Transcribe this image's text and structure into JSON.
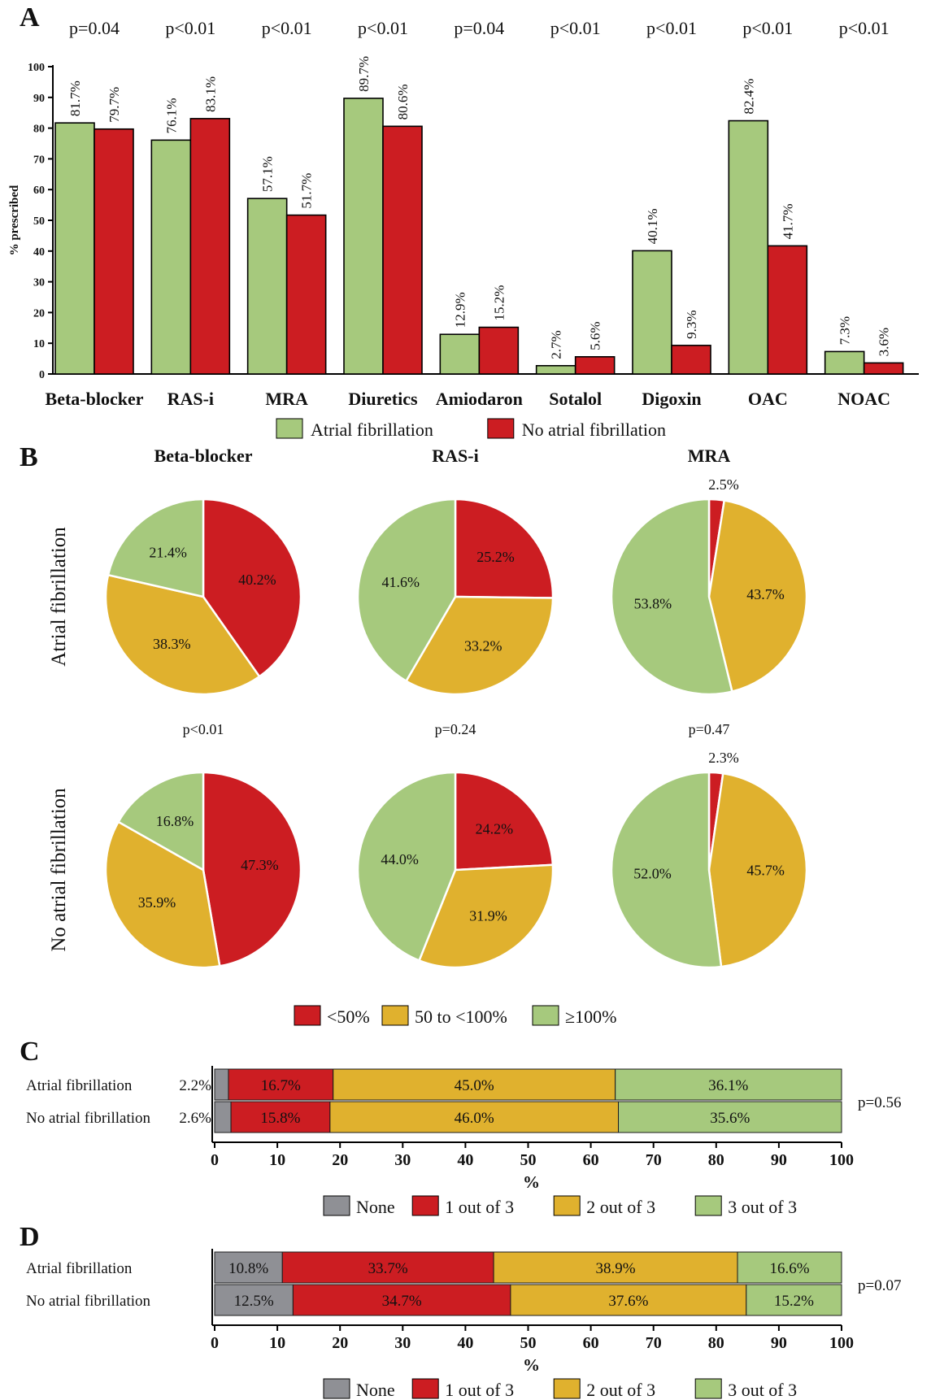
{
  "colors": {
    "af": "#a6c97d",
    "noaf": "#cc1d22",
    "none": "#8f9095",
    "mid": "#e0b12e",
    "axis": "#000000"
  },
  "panels": {
    "a": "A",
    "b": "B",
    "c": "C",
    "d": "D"
  },
  "chart_data": [
    {
      "type": "bar",
      "panel": "A",
      "categories": [
        "Beta-blocker",
        "RAS-i",
        "MRA",
        "Diuretics",
        "Amiodaron",
        "Sotalol",
        "Digoxin",
        "OAC",
        "NOAC"
      ],
      "series": [
        {
          "name": "Atrial fibrillation",
          "values": [
            81.7,
            76.1,
            57.1,
            89.7,
            12.9,
            2.7,
            40.1,
            82.4,
            7.3
          ],
          "labels": [
            "81.7%",
            "76.1%",
            "57.1%",
            "89.7%",
            "12.9%",
            "2.7%",
            "40.1%",
            "82.4%",
            "7.3%"
          ]
        },
        {
          "name": "No atrial fibrillation",
          "values": [
            79.7,
            83.1,
            51.7,
            80.6,
            15.2,
            5.6,
            9.3,
            41.7,
            3.6
          ],
          "labels": [
            "79.7%",
            "83.1%",
            "51.7%",
            "80.6%",
            "15.2%",
            "5.6%",
            "9.3%",
            "41.7%",
            "3.6%"
          ]
        }
      ],
      "p_values": [
        "p=0.04",
        "p<0.01",
        "p<0.01",
        "p<0.01",
        "p=0.04",
        "p<0.01",
        "p<0.01",
        "p<0.01",
        "p<0.01"
      ],
      "ylabel": "% prescribed",
      "ylim": [
        0,
        100
      ],
      "yticks": [
        "0",
        "10",
        "20",
        "30",
        "40",
        "50",
        "60",
        "70",
        "80",
        "90",
        "100"
      ],
      "legend_position": "bottom-center"
    },
    {
      "type": "pie",
      "panel": "B",
      "columns": [
        "Beta-blocker",
        "RAS-i",
        "MRA"
      ],
      "rows": [
        "Atrial fibrillation",
        "No atrial fibrillation"
      ],
      "categories": [
        "<50%",
        "50 to <100%",
        "≥100%"
      ],
      "pies": [
        {
          "row": 0,
          "col": 0,
          "values": [
            40.2,
            38.3,
            21.4
          ],
          "labels": [
            "40.2%",
            "38.3%",
            "21.4%"
          ]
        },
        {
          "row": 0,
          "col": 1,
          "values": [
            25.2,
            33.2,
            41.6
          ],
          "labels": [
            "25.2%",
            "33.2%",
            "41.6%"
          ]
        },
        {
          "row": 0,
          "col": 2,
          "values": [
            2.5,
            43.7,
            53.8
          ],
          "labels": [
            "2.5%",
            "43.7%",
            "53.8%"
          ]
        },
        {
          "row": 1,
          "col": 0,
          "values": [
            47.3,
            35.9,
            16.8
          ],
          "labels": [
            "47.3%",
            "35.9%",
            "16.8%"
          ]
        },
        {
          "row": 1,
          "col": 1,
          "values": [
            24.2,
            31.9,
            44.0
          ],
          "labels": [
            "24.2%",
            "31.9%",
            "44.0%"
          ]
        },
        {
          "row": 1,
          "col": 2,
          "values": [
            2.3,
            45.7,
            52.0
          ],
          "labels": [
            "2.3%",
            "45.7%",
            "52.0%"
          ]
        }
      ],
      "p_values": [
        "p<0.01",
        "p=0.24",
        "p=0.47"
      ],
      "legend_position": "bottom-center"
    },
    {
      "type": "bar",
      "orientation": "horizontal-stacked",
      "panel": "C",
      "rows": [
        "Atrial fibrillation",
        "No atrial fibrillation"
      ],
      "categories": [
        "None",
        "1 out of 3",
        "2 out of 3",
        "3 out of 3"
      ],
      "values": [
        [
          2.2,
          16.7,
          45.0,
          36.1
        ],
        [
          2.6,
          15.8,
          46.0,
          35.6
        ]
      ],
      "labels": [
        [
          "2.2%",
          "16.7%",
          "45.0%",
          "36.1%"
        ],
        [
          "2.6%",
          "15.8%",
          "46.0%",
          "35.6%"
        ]
      ],
      "p_value": "p=0.56",
      "xlabel": "%",
      "xlim": [
        0,
        100
      ],
      "xticks": [
        "0",
        "10",
        "20",
        "30",
        "40",
        "50",
        "60",
        "70",
        "80",
        "90",
        "100"
      ],
      "legend_position": "bottom-center"
    },
    {
      "type": "bar",
      "orientation": "horizontal-stacked",
      "panel": "D",
      "rows": [
        "Atrial fibrillation",
        "No atrial fibrillation"
      ],
      "categories": [
        "None",
        "1 out of 3",
        "2 out of 3",
        "3 out of 3"
      ],
      "values": [
        [
          10.8,
          33.7,
          38.9,
          16.6
        ],
        [
          12.5,
          34.7,
          37.6,
          15.2
        ]
      ],
      "labels": [
        [
          "10.8%",
          "33.7%",
          "38.9%",
          "16.6%"
        ],
        [
          "12.5%",
          "34.7%",
          "37.6%",
          "15.2%"
        ]
      ],
      "p_value": "p=0.07",
      "xlabel": "%",
      "xlim": [
        0,
        100
      ],
      "xticks": [
        "0",
        "10",
        "20",
        "30",
        "40",
        "50",
        "60",
        "70",
        "80",
        "90",
        "100"
      ],
      "legend_position": "bottom-center"
    }
  ]
}
